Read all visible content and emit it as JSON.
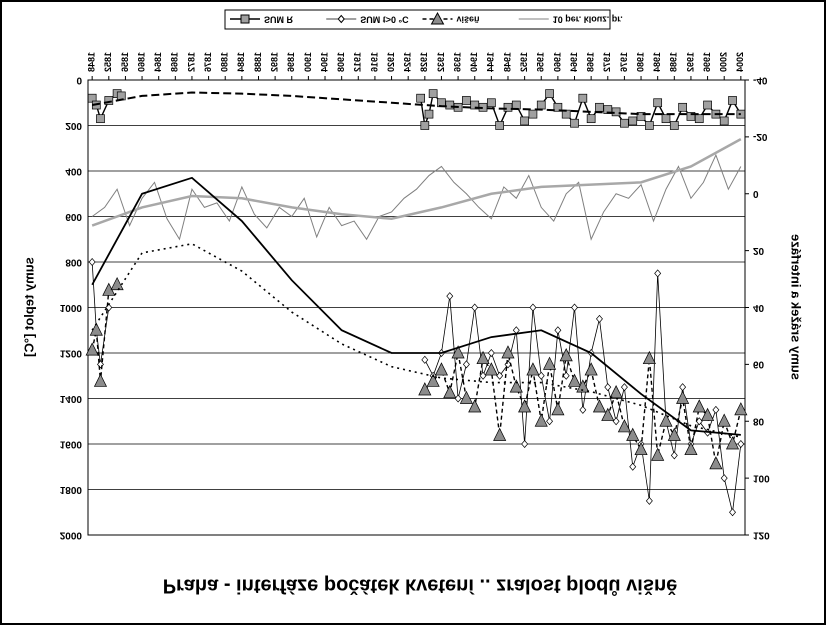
{
  "chart_data": {
    "type": "line",
    "title": "Praha - interfáze počátek kvetení .. zralost plodů višně",
    "y_label": "sumy teplot [°C]",
    "y2_label": "sumy srážek a interfáze",
    "xlim": [
      1847,
      2005
    ],
    "xticks": [
      1848,
      1852,
      1856,
      1860,
      1864,
      1868,
      1872,
      1876,
      1880,
      1884,
      1888,
      1892,
      1896,
      1900,
      1904,
      1908,
      1912,
      1916,
      1920,
      1924,
      1928,
      1932,
      1936,
      1940,
      1944,
      1948,
      1952,
      1956,
      1960,
      1964,
      1968,
      1972,
      1976,
      1980,
      1984,
      1988,
      1992,
      1996,
      2000,
      2004
    ],
    "ylim": [
      0,
      2000
    ],
    "yticks": [
      0,
      200,
      400,
      600,
      800,
      1000,
      1200,
      1400,
      1600,
      1800,
      2000
    ],
    "y2lim": [
      -40,
      120
    ],
    "y2ticks": [
      -40,
      -20,
      0,
      20,
      40,
      60,
      80,
      100,
      120
    ],
    "grid": true,
    "flipped_vertically": true,
    "series": [
      {
        "name": "SUM R",
        "color": "#000000",
        "width": 1.4,
        "dash": "none",
        "marker": "square",
        "marker_color": "#a0a0a0",
        "x": [
          1848,
          1849,
          1850,
          1852,
          1854,
          1855,
          1890,
          1927,
          1928,
          1929,
          1930,
          1932,
          1934,
          1936,
          1938,
          1940,
          1942,
          1944,
          1946,
          1948,
          1950,
          1952,
          1954,
          1956,
          1958,
          1960,
          1962,
          1964,
          1966,
          1968,
          1970,
          1972,
          1974,
          1976,
          1978,
          1980,
          1982,
          1984,
          1986,
          1988,
          1990,
          1992,
          1994,
          1996,
          1998,
          2000,
          2002,
          2004
        ],
        "values": [
          80,
          110,
          170,
          90,
          60,
          70,
          null,
          80,
          200,
          150,
          60,
          100,
          110,
          120,
          90,
          110,
          120,
          100,
          200,
          120,
          110,
          180,
          150,
          110,
          60,
          120,
          150,
          190,
          80,
          170,
          120,
          130,
          140,
          190,
          180,
          160,
          200,
          100,
          170,
          200,
          120,
          160,
          170,
          110,
          150,
          180,
          90,
          150
        ]
      },
      {
        "name": "SUM t>0 °C",
        "color": "#000000",
        "width": 0.8,
        "dash": "none",
        "marker": "diamond",
        "marker_color": "#ffffff",
        "x": [
          1848,
          1849,
          1850,
          1852,
          1900,
          1928,
          1930,
          1932,
          1934,
          1936,
          1938,
          1940,
          1942,
          1944,
          1946,
          1948,
          1950,
          1952,
          1954,
          1956,
          1958,
          1960,
          1962,
          1964,
          1966,
          1968,
          1970,
          1972,
          1974,
          1976,
          1978,
          1980,
          1982,
          1984,
          1986,
          1988,
          1990,
          1992,
          1994,
          1996,
          1998,
          2000,
          2002,
          2004
        ],
        "values": [
          800,
          1100,
          1250,
          1000,
          null,
          1230,
          1300,
          1200,
          950,
          1400,
          1250,
          1000,
          1300,
          1200,
          1300,
          1250,
          1100,
          1600,
          1000,
          1300,
          1500,
          1100,
          1300,
          1000,
          1450,
          1200,
          1050,
          1350,
          1500,
          1350,
          1700,
          1600,
          1850,
          850,
          1500,
          1650,
          1350,
          1600,
          1500,
          1550,
          1450,
          1750,
          1900,
          1600
        ]
      },
      {
        "name": "višeň",
        "color": "#000000",
        "width": 1.4,
        "dash": "4 3",
        "marker": "triangle",
        "marker_color": "#8c8c8c",
        "axis": "y2",
        "x": [
          1848,
          1849,
          1850,
          1852,
          1854,
          1900,
          1928,
          1930,
          1932,
          1934,
          1936,
          1938,
          1940,
          1942,
          1944,
          1946,
          1948,
          1950,
          1952,
          1954,
          1956,
          1958,
          1960,
          1962,
          1964,
          1966,
          1968,
          1970,
          1972,
          1974,
          1976,
          1978,
          1980,
          1982,
          1984,
          1986,
          1988,
          1990,
          1992,
          1994,
          1996,
          1998,
          2000,
          2002,
          2004
        ],
        "values": [
          55,
          48,
          66,
          34,
          32,
          null,
          69,
          66,
          62,
          70,
          56,
          72,
          75,
          58,
          62,
          85,
          56,
          68,
          75,
          62,
          80,
          60,
          76,
          57,
          66,
          68,
          62,
          75,
          78,
          70,
          82,
          85,
          90,
          58,
          92,
          80,
          85,
          72,
          90,
          75,
          78,
          95,
          80,
          88,
          76
        ]
      },
      {
        "name": "10 per. klouz. pr.",
        "color": "#808080",
        "width": 1,
        "dash": "none",
        "marker": "none",
        "x": [
          1848,
          1851,
          1854,
          1857,
          1860,
          1863,
          1866,
          1869,
          1872,
          1875,
          1878,
          1881,
          1884,
          1887,
          1890,
          1893,
          1896,
          1899,
          1902,
          1905,
          1908,
          1911,
          1914,
          1917,
          1920,
          1923,
          1926,
          1929,
          1932,
          1935,
          1938,
          1941,
          1944,
          1947,
          1950,
          1953,
          1956,
          1959,
          1962,
          1965,
          1968,
          1971,
          1974,
          1977,
          1980,
          1983,
          1986,
          1989,
          1992,
          1995,
          1998,
          2001,
          2004
        ],
        "values": [
          600,
          560,
          480,
          640,
          520,
          450,
          610,
          700,
          480,
          560,
          540,
          620,
          470,
          590,
          650,
          560,
          600,
          520,
          690,
          560,
          640,
          620,
          700,
          600,
          580,
          520,
          480,
          420,
          380,
          450,
          500,
          560,
          610,
          470,
          520,
          420,
          560,
          620,
          500,
          450,
          700,
          580,
          500,
          520,
          460,
          620,
          480,
          380,
          520,
          450,
          330,
          480,
          380
        ]
      },
      {
        "color": "#a8a8a8",
        "width": 2.5,
        "dash": "none",
        "marker": "none",
        "x": [
          1848,
          1860,
          1872,
          1884,
          1896,
          1908,
          1920,
          1932,
          1944,
          1956,
          1968,
          1980,
          1992,
          2004
        ],
        "values": [
          640,
          560,
          510,
          520,
          560,
          590,
          610,
          560,
          500,
          470,
          460,
          450,
          380,
          260
        ]
      },
      {
        "color": "#000000",
        "width": 2,
        "dash": "8 4",
        "marker": "none",
        "x": [
          1848,
          1860,
          1872,
          1884,
          1896,
          1908,
          1920,
          1932,
          1944,
          1956,
          1968,
          1980,
          1992,
          2004
        ],
        "values": [
          110,
          70,
          55,
          60,
          70,
          85,
          100,
          115,
          125,
          130,
          140,
          150,
          150,
          150
        ]
      },
      {
        "color": "#000000",
        "width": 1.8,
        "dash": "none",
        "marker": "none",
        "x": [
          1848,
          1860,
          1872,
          1884,
          1896,
          1908,
          1920,
          1932,
          1944,
          1956,
          1968,
          1980,
          1992,
          2004
        ],
        "values": [
          900,
          500,
          430,
          620,
          880,
          1100,
          1200,
          1200,
          1130,
          1100,
          1200,
          1380,
          1540,
          1560
        ]
      },
      {
        "color": "#000000",
        "width": 1.6,
        "dash": "2 4",
        "marker": "none",
        "x": [
          1848,
          1860,
          1872,
          1884,
          1896,
          1908,
          1920,
          1932,
          1944,
          1956,
          1968,
          1980,
          1992,
          2004
        ],
        "values": [
          1100,
          760,
          720,
          840,
          1020,
          1160,
          1260,
          1310,
          1330,
          1330,
          1370,
          1430,
          1520,
          1570
        ]
      }
    ]
  }
}
